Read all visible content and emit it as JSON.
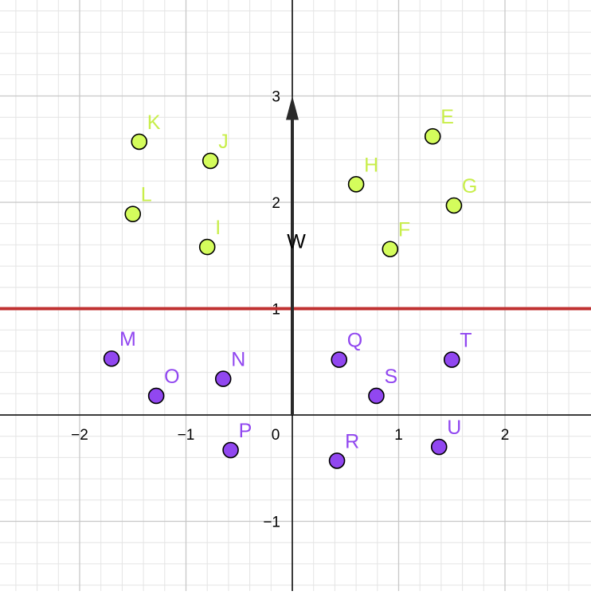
{
  "chart_data": {
    "type": "scatter",
    "xlim": [
      -2.75,
      2.8
    ],
    "ylim": [
      -1.65,
      3.9
    ],
    "grid": true,
    "minor_grid_step": 0.2,
    "x_ticks": [
      {
        "value": -2,
        "label": "−2"
      },
      {
        "value": -1,
        "label": "−1"
      },
      {
        "value": 0,
        "label": "0"
      },
      {
        "value": 1,
        "label": "1"
      },
      {
        "value": 2,
        "label": "2"
      }
    ],
    "y_ticks": [
      {
        "value": 3,
        "label": "3"
      },
      {
        "value": 2,
        "label": "2"
      },
      {
        "value": 1,
        "label": "1"
      },
      {
        "value": -1,
        "label": "−1"
      }
    ],
    "colors": {
      "group_upper": "#d4fc5c",
      "group_upper_label": "#c8ee4a",
      "group_lower": "#9147f0",
      "group_lower_label": "#9147f0",
      "line": "#c03232",
      "vector": "#2a2a2a",
      "major_grid": "#c8c8c8",
      "minor_grid": "#e4e4e4",
      "axis": "#000000"
    },
    "points": [
      {
        "name": "E",
        "x": 1.32,
        "y": 2.62,
        "group": "upper"
      },
      {
        "name": "F",
        "x": 0.92,
        "y": 1.56,
        "group": "upper"
      },
      {
        "name": "G",
        "x": 1.52,
        "y": 1.97,
        "group": "upper"
      },
      {
        "name": "H",
        "x": 0.6,
        "y": 2.17,
        "group": "upper"
      },
      {
        "name": "I",
        "x": -0.8,
        "y": 1.58,
        "group": "upper"
      },
      {
        "name": "J",
        "x": -0.77,
        "y": 2.39,
        "group": "upper"
      },
      {
        "name": "K",
        "x": -1.44,
        "y": 2.57,
        "group": "upper"
      },
      {
        "name": "L",
        "x": -1.5,
        "y": 1.89,
        "group": "upper"
      },
      {
        "name": "M",
        "x": -1.7,
        "y": 0.53,
        "group": "lower"
      },
      {
        "name": "N",
        "x": -0.65,
        "y": 0.34,
        "group": "lower"
      },
      {
        "name": "O",
        "x": -1.28,
        "y": 0.18,
        "group": "lower"
      },
      {
        "name": "P",
        "x": -0.58,
        "y": -0.33,
        "group": "lower"
      },
      {
        "name": "Q",
        "x": 0.44,
        "y": 0.52,
        "group": "lower"
      },
      {
        "name": "R",
        "x": 0.42,
        "y": -0.43,
        "group": "lower"
      },
      {
        "name": "S",
        "x": 0.79,
        "y": 0.18,
        "group": "lower"
      },
      {
        "name": "T",
        "x": 1.5,
        "y": 0.52,
        "group": "lower"
      },
      {
        "name": "U",
        "x": 1.38,
        "y": -0.3,
        "group": "lower"
      }
    ],
    "horizontal_line": {
      "y": 1
    },
    "vector": {
      "name": "W",
      "from": [
        0,
        0
      ],
      "to": [
        0,
        3
      ]
    }
  }
}
